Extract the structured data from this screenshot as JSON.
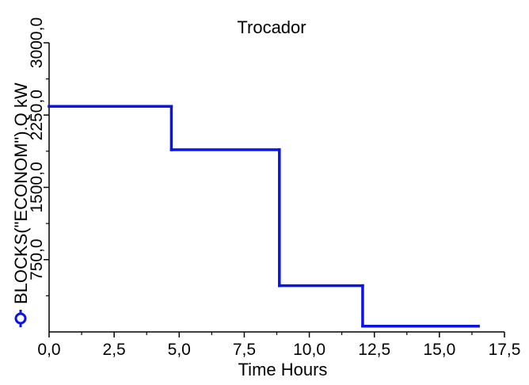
{
  "chart_data": {
    "type": "line",
    "title": "Trocador",
    "xlabel": "Time Hours",
    "ylabel": "BLOCKS(\"ECONOM\").Q kW",
    "xlim": [
      0,
      17.5
    ],
    "ylim": [
      0,
      3000
    ],
    "x_ticks": [
      "0,0",
      "2,5",
      "5,0",
      "7,5",
      "10,0",
      "12,5",
      "15,0",
      "17,5"
    ],
    "y_ticks": [
      "750,0",
      "1500,0",
      "2250,0",
      "3000,0"
    ],
    "grid": false,
    "series": [
      {
        "color": "#0a14e6",
        "step": true,
        "x": [
          0.0,
          4.7,
          4.7,
          8.85,
          8.85,
          12.05,
          12.05,
          16.5
        ],
        "y": [
          2340,
          2340,
          1890,
          1890,
          480,
          480,
          60,
          60
        ]
      }
    ]
  }
}
